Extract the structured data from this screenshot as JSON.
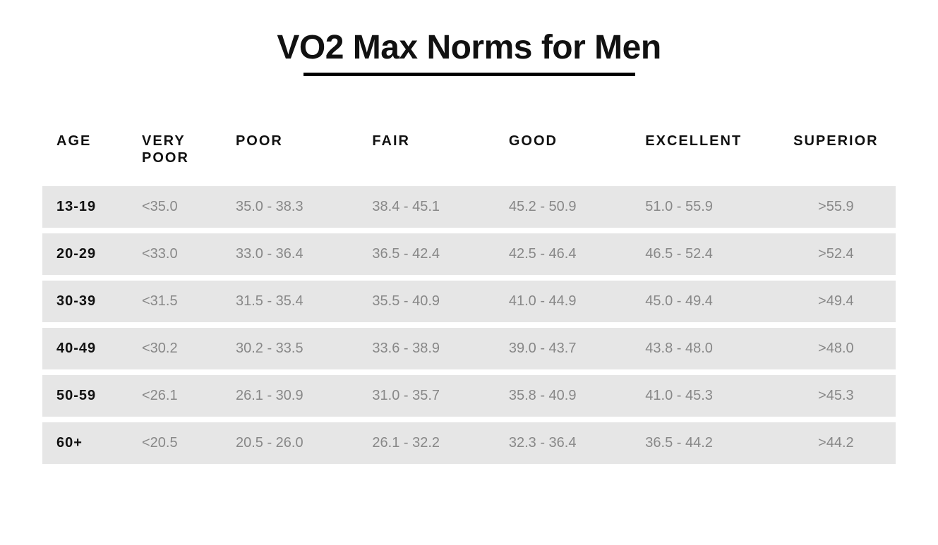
{
  "title": "VO2 Max Norms for Men",
  "table": {
    "type": "table",
    "background_color": "#ffffff",
    "row_background": "#e6e6e6",
    "header_text_color": "#111111",
    "age_text_color": "#111111",
    "value_text_color": "#888888",
    "title_fontsize": 48,
    "header_fontsize": 20,
    "cell_fontsize": 20,
    "columns": [
      {
        "key": "age",
        "label": "AGE"
      },
      {
        "key": "very_poor",
        "label": "VERY POOR"
      },
      {
        "key": "poor",
        "label": "POOR"
      },
      {
        "key": "fair",
        "label": "FAIR"
      },
      {
        "key": "good",
        "label": "GOOD"
      },
      {
        "key": "excellent",
        "label": "EXCELLENT"
      },
      {
        "key": "superior",
        "label": "SUPERIOR"
      }
    ],
    "rows": [
      {
        "age": "13-19",
        "very_poor": "<35.0",
        "poor": "35.0 - 38.3",
        "fair": "38.4 - 45.1",
        "good": "45.2 - 50.9",
        "excellent": "51.0 - 55.9",
        "superior": ">55.9"
      },
      {
        "age": "20-29",
        "very_poor": "<33.0",
        "poor": "33.0 - 36.4",
        "fair": "36.5 - 42.4",
        "good": "42.5 - 46.4",
        "excellent": "46.5 - 52.4",
        "superior": ">52.4"
      },
      {
        "age": "30-39",
        "very_poor": "<31.5",
        "poor": "31.5 - 35.4",
        "fair": "35.5 - 40.9",
        "good": "41.0 - 44.9",
        "excellent": "45.0 - 49.4",
        "superior": ">49.4"
      },
      {
        "age": "40-49",
        "very_poor": "<30.2",
        "poor": "30.2 - 33.5",
        "fair": "33.6 - 38.9",
        "good": "39.0 - 43.7",
        "excellent": "43.8 - 48.0",
        "superior": ">48.0"
      },
      {
        "age": "50-59",
        "very_poor": "<26.1",
        "poor": "26.1 - 30.9",
        "fair": "31.0 - 35.7",
        "good": "35.8 - 40.9",
        "excellent": "41.0 - 45.3",
        "superior": ">45.3"
      },
      {
        "age": "60+",
        "very_poor": "<20.5",
        "poor": "20.5 - 26.0",
        "fair": "26.1 - 32.2",
        "good": "32.3 - 36.4",
        "excellent": "36.5 - 44.2",
        "superior": ">44.2"
      }
    ]
  }
}
